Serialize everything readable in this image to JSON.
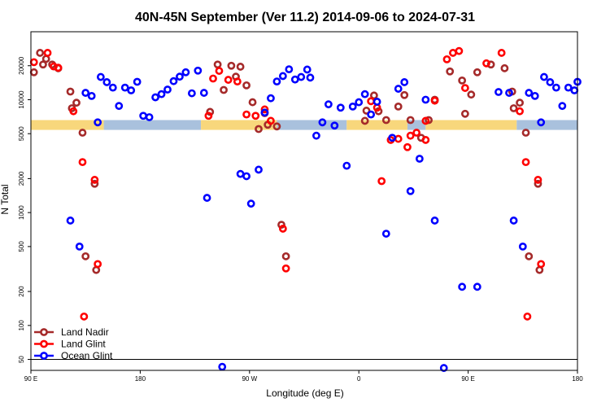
{
  "chart_data": {
    "type": "scatter",
    "title": "40N-45N September (Ver 11.2)   2014-09-06 to 2024-07-31",
    "xlabel": "Longitude (deg E)",
    "ylabel": "N Total",
    "y_scale": "log",
    "xlim": [
      90,
      450
    ],
    "ylim": [
      40,
      40000
    ],
    "x_ticks": [
      {
        "value": 90,
        "label": "90 E"
      },
      {
        "value": 162,
        "label": "180"
      },
      {
        "value": 234,
        "label": "90 W"
      },
      {
        "value": 306,
        "label": "0"
      },
      {
        "value": 378,
        "label": "90 E"
      },
      {
        "value": 450,
        "label": "180"
      }
    ],
    "y_ticks": [
      {
        "value": 50,
        "label": "50"
      },
      {
        "value": 100,
        "label": "100"
      },
      {
        "value": 200,
        "label": "200"
      },
      {
        "value": 500,
        "label": "500"
      },
      {
        "value": 1000,
        "label": "1000"
      },
      {
        "value": 2000,
        "label": "2000"
      },
      {
        "value": 5000,
        "label": "5000"
      },
      {
        "value": 10000,
        "label": "10000"
      },
      {
        "value": 20000,
        "label": "20000"
      }
    ],
    "legend": [
      "Land Nadir",
      "Land Glint",
      "Ocean Glint"
    ],
    "legend_position": "bottom-left",
    "reference_line_y": 50,
    "land_mask_band": {
      "y_range": [
        5400,
        6600
      ],
      "ocean_color": "#a9c1dd",
      "land_color": "#f8d77c",
      "segments": [
        {
          "type": "land",
          "x0": 90,
          "x1": 138
        },
        {
          "type": "ocean",
          "x0": 138,
          "x1": 202
        },
        {
          "type": "land",
          "x0": 202,
          "x1": 252
        },
        {
          "type": "ocean",
          "x0": 252,
          "x1": 298
        },
        {
          "type": "land",
          "x0": 298,
          "x1": 338
        },
        {
          "type": "ocean",
          "x0": 338,
          "x1": 350
        },
        {
          "type": "land",
          "x0": 350,
          "x1": 410
        },
        {
          "type": "ocean",
          "x0": 410,
          "x1": 450
        }
      ]
    },
    "series": [
      {
        "name": "Land Nadir",
        "color": "#a52a2a",
        "points": [
          [
            92,
            17500
          ],
          [
            96,
            26000
          ],
          [
            98,
            20500
          ],
          [
            100,
            23000
          ],
          [
            104,
            20500
          ],
          [
            108,
            19000
          ],
          [
            116,
            11800
          ],
          [
            117,
            8400
          ],
          [
            120,
            9400
          ],
          [
            124,
            5100
          ],
          [
            126,
            410
          ],
          [
            132,
            1800
          ],
          [
            133,
            310
          ],
          [
            208,
            7800
          ],
          [
            213,
            20500
          ],
          [
            217,
            12200
          ],
          [
            222,
            20000
          ],
          [
            225,
            16000
          ],
          [
            228,
            19600
          ],
          [
            232,
            13400
          ],
          [
            236,
            9500
          ],
          [
            240,
            5500
          ],
          [
            244,
            7600
          ],
          [
            246,
            6000
          ],
          [
            252,
            5800
          ],
          [
            255,
            780
          ],
          [
            258,
            410
          ],
          [
            310,
            6500
          ],
          [
            311,
            8000
          ],
          [
            316,
            10900
          ],
          [
            319,
            7900
          ],
          [
            324,
            6600
          ],
          [
            332,
            8700
          ],
          [
            336,
            11000
          ],
          [
            340,
            6600
          ],
          [
            347,
            4600
          ],
          [
            352,
            6600
          ],
          [
            356,
            10000
          ],
          [
            366,
            17800
          ],
          [
            374,
            14800
          ],
          [
            376,
            7500
          ],
          [
            380,
            11100
          ],
          [
            384,
            17500
          ],
          [
            393,
            20500
          ],
          [
            402,
            19000
          ],
          [
            407,
            11800
          ],
          [
            408,
            8400
          ],
          [
            412,
            9400
          ],
          [
            416,
            5100
          ],
          [
            418,
            410
          ],
          [
            424,
            1800
          ],
          [
            425,
            310
          ]
        ]
      },
      {
        "name": "Land Glint",
        "color": "#ff0000",
        "points": [
          [
            92,
            21500
          ],
          [
            101,
            26000
          ],
          [
            105,
            19700
          ],
          [
            108,
            19200
          ],
          [
            118,
            7900
          ],
          [
            124,
            2800
          ],
          [
            125,
            120
          ],
          [
            132,
            1950
          ],
          [
            134,
            350
          ],
          [
            207,
            7200
          ],
          [
            210,
            15400
          ],
          [
            214,
            18000
          ],
          [
            220,
            15000
          ],
          [
            226,
            14500
          ],
          [
            232,
            7400
          ],
          [
            238,
            7200
          ],
          [
            244,
            8200
          ],
          [
            248,
            6500
          ],
          [
            256,
            720
          ],
          [
            258,
            320
          ],
          [
            314,
            9700
          ],
          [
            318,
            8500
          ],
          [
            321,
            1900
          ],
          [
            327,
            4400
          ],
          [
            332,
            4500
          ],
          [
            338,
            3800
          ],
          [
            340,
            4800
          ],
          [
            344,
            5100
          ],
          [
            350,
            6500
          ],
          [
            350,
            4400
          ],
          [
            356,
            9800
          ],
          [
            364,
            22800
          ],
          [
            368,
            26000
          ],
          [
            372,
            27000
          ],
          [
            376,
            12700
          ],
          [
            390,
            21000
          ],
          [
            400,
            26000
          ],
          [
            412,
            7900
          ],
          [
            416,
            2800
          ],
          [
            417,
            120
          ],
          [
            424,
            1950
          ],
          [
            426,
            350
          ]
        ]
      },
      {
        "name": "Ocean Glint",
        "color": "#0000ff",
        "points": [
          [
            116,
            850
          ],
          [
            122,
            500
          ],
          [
            126,
            11500
          ],
          [
            130,
            10800
          ],
          [
            134,
            6300
          ],
          [
            136,
            15900
          ],
          [
            140,
            14300
          ],
          [
            144,
            12800
          ],
          [
            148,
            8800
          ],
          [
            152,
            12800
          ],
          [
            156,
            12100
          ],
          [
            160,
            14400
          ],
          [
            164,
            7200
          ],
          [
            168,
            7000
          ],
          [
            172,
            10500
          ],
          [
            176,
            11200
          ],
          [
            180,
            12300
          ],
          [
            184,
            14600
          ],
          [
            188,
            16000
          ],
          [
            192,
            17500
          ],
          [
            196,
            11400
          ],
          [
            200,
            18100
          ],
          [
            204,
            11500
          ],
          [
            206,
            1350
          ],
          [
            216,
            43
          ],
          [
            228,
            2200
          ],
          [
            232,
            2100
          ],
          [
            235,
            1200
          ],
          [
            240,
            2400
          ],
          [
            244,
            7700
          ],
          [
            248,
            10300
          ],
          [
            252,
            14500
          ],
          [
            256,
            16200
          ],
          [
            260,
            18600
          ],
          [
            264,
            15100
          ],
          [
            268,
            15900
          ],
          [
            272,
            18500
          ],
          [
            274,
            15700
          ],
          [
            278,
            4800
          ],
          [
            282,
            6300
          ],
          [
            286,
            9100
          ],
          [
            290,
            5900
          ],
          [
            294,
            8500
          ],
          [
            298,
            2600
          ],
          [
            302,
            8700
          ],
          [
            306,
            9500
          ],
          [
            310,
            11200
          ],
          [
            314,
            7400
          ],
          [
            318,
            9600
          ],
          [
            324,
            650
          ],
          [
            328,
            4600
          ],
          [
            332,
            12500
          ],
          [
            336,
            14300
          ],
          [
            340,
            1550
          ],
          [
            346,
            3000
          ],
          [
            350,
            10000
          ],
          [
            356,
            850
          ],
          [
            362,
            42
          ],
          [
            374,
            220
          ],
          [
            384,
            220
          ],
          [
            398,
            11700
          ],
          [
            405,
            11500
          ],
          [
            408,
            850
          ],
          [
            414,
            500
          ],
          [
            418,
            11500
          ],
          [
            422,
            10800
          ],
          [
            426,
            6300
          ],
          [
            428,
            15900
          ],
          [
            432,
            14300
          ],
          [
            436,
            12800
          ],
          [
            440,
            8800
          ],
          [
            444,
            12800
          ],
          [
            448,
            12100
          ],
          [
            450,
            14400
          ]
        ]
      }
    ]
  }
}
